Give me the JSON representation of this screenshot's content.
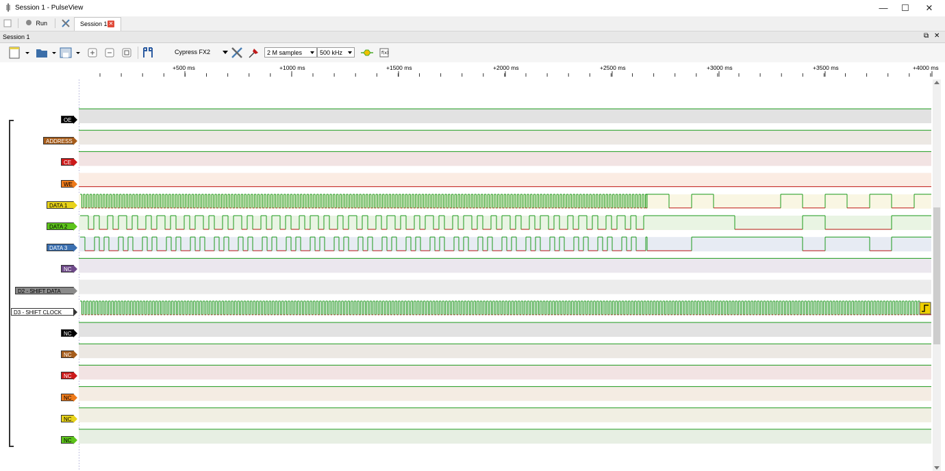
{
  "window": {
    "title": "Session 1 - PulseView",
    "minimize": "—",
    "maximize": "☐",
    "close": "✕"
  },
  "menubar": {
    "run_label": "Run",
    "session_tab": "Session 1",
    "tab_close": "✕"
  },
  "session_bar": {
    "label": "Session 1",
    "float": "⧉",
    "close": "✕"
  },
  "toolbar": {
    "device": "Cypress FX2",
    "samples": "2 M samples",
    "rate": "500 kHz"
  },
  "ruler": {
    "ticks": [
      "+500 ms",
      "+1000 ms",
      "+1500 ms",
      "+2000 ms",
      "+2500 ms",
      "+3000 ms",
      "+3500 ms",
      "+4000 ms"
    ]
  },
  "channels": [
    {
      "name": "OE",
      "label_color": "#000000",
      "text_color": "#ffffff",
      "bg": "#e2e2e2",
      "signal": "constant-high"
    },
    {
      "name": "ADDRESS",
      "label_color": "#a65c1a",
      "text_color": "#ffffff",
      "bg": "#ece8e3",
      "signal": "constant-high"
    },
    {
      "name": "CE",
      "label_color": "#cc1a1a",
      "text_color": "#ffffff",
      "bg": "#f2e3e3",
      "signal": "constant-high"
    },
    {
      "name": "WE",
      "label_color": "#ee7a1a",
      "text_color": "#000000",
      "bg": "#fbece3",
      "signal": "constant-low"
    },
    {
      "name": "DATA 1",
      "label_color": "#e8d31a",
      "text_color": "#000000",
      "bg": "#f9f6e3",
      "signal": "data1"
    },
    {
      "name": "DATA 2",
      "label_color": "#5cc41a",
      "text_color": "#000000",
      "bg": "#e9f4e3",
      "signal": "data2"
    },
    {
      "name": "DATA 3",
      "label_color": "#3a6fb0",
      "text_color": "#ffffff",
      "bg": "#e7ebf3",
      "signal": "data3"
    },
    {
      "name": "NC",
      "label_color": "#6f4a8a",
      "text_color": "#ffffff",
      "bg": "#ebe7ee",
      "signal": "constant-high"
    },
    {
      "name": "D2 - SHIFT DATA",
      "label_color": "#8a8a8a",
      "text_color": "#000000",
      "bg": "#ececec",
      "signal": "none"
    },
    {
      "name": "D3 - SHIFT CLOCK",
      "label_color": "#ffffff",
      "text_color": "#000000",
      "bg": "#f4f4f4",
      "signal": "clock"
    },
    {
      "name": "NC",
      "label_color": "#000000",
      "text_color": "#ffffff",
      "bg": "#e2e2e2",
      "signal": "constant-high"
    },
    {
      "name": "NC",
      "label_color": "#a65c1a",
      "text_color": "#ffffff",
      "bg": "#ece8e3",
      "signal": "constant-high"
    },
    {
      "name": "NC",
      "label_color": "#cc1a1a",
      "text_color": "#ffffff",
      "bg": "#f2e3e3",
      "signal": "constant-high"
    },
    {
      "name": "NC",
      "label_color": "#ee7a1a",
      "text_color": "#000000",
      "bg": "#f4ece3",
      "signal": "constant-high"
    },
    {
      "name": "NC",
      "label_color": "#e8d31a",
      "text_color": "#000000",
      "bg": "#f1efe3",
      "signal": "constant-high"
    },
    {
      "name": "NC",
      "label_color": "#5cc41a",
      "text_color": "#000000",
      "bg": "#e7efe3",
      "signal": "constant-high"
    }
  ],
  "colors": {
    "high": "#1a9a1a",
    "low": "#c01a1a",
    "edge_trigger": "#f0d000"
  }
}
